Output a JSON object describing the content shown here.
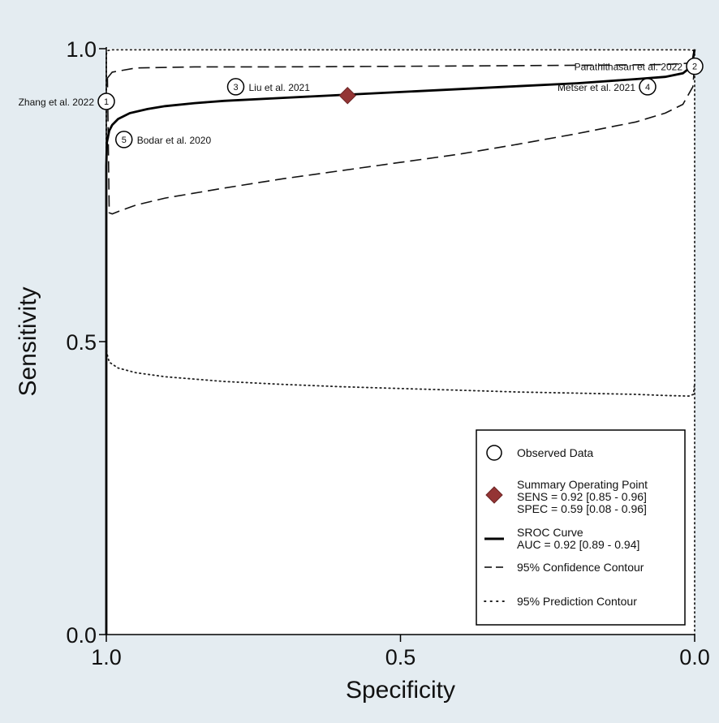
{
  "chart_data": {
    "type": "scatter",
    "xlabel": "Specificity",
    "ylabel": "Sensitivity",
    "x_axis_reversed": true,
    "xlim": [
      1.0,
      0.0
    ],
    "ylim": [
      0.0,
      1.0
    ],
    "x_ticks": [
      {
        "value": 1.0,
        "label": "1.0"
      },
      {
        "value": 0.5,
        "label": "0.5"
      },
      {
        "value": 0.0,
        "label": "0.0"
      }
    ],
    "y_ticks": [
      {
        "value": 0.0,
        "label": "0.0"
      },
      {
        "value": 0.5,
        "label": "0.5"
      },
      {
        "value": 1.0,
        "label": "1.0"
      }
    ],
    "grid": false,
    "background_color": "#e4ecf1",
    "plot_background_color": "#ffffff",
    "studies": [
      {
        "id": "1",
        "label": "Zhang et al. 2022",
        "specificity": 1.0,
        "sensitivity": 0.91,
        "label_side": "left"
      },
      {
        "id": "2",
        "label": "Parathithasan et al. 2022",
        "specificity": 0.0,
        "sensitivity": 0.97,
        "label_side": "left"
      },
      {
        "id": "3",
        "label": "Liu et al. 2021",
        "specificity": 0.78,
        "sensitivity": 0.935,
        "label_side": "right"
      },
      {
        "id": "4",
        "label": "Metser et al. 2021",
        "specificity": 0.08,
        "sensitivity": 0.935,
        "label_side": "left"
      },
      {
        "id": "5",
        "label": "Bodar et al. 2020",
        "specificity": 0.97,
        "sensitivity": 0.845,
        "label_side": "right"
      }
    ],
    "summary_point": {
      "specificity": 0.59,
      "sensitivity": 0.92,
      "color": "#943535"
    },
    "sroc_curve": {
      "x": [
        1.0,
        1.0,
        0.999,
        0.995,
        0.99,
        0.98,
        0.96,
        0.93,
        0.9,
        0.85,
        0.8,
        0.7,
        0.6,
        0.5,
        0.4,
        0.3,
        0.2,
        0.1,
        0.05,
        0.02,
        0.005,
        0.0
      ],
      "y": [
        0.0,
        0.8,
        0.84,
        0.86,
        0.87,
        0.88,
        0.89,
        0.897,
        0.902,
        0.907,
        0.911,
        0.916,
        0.921,
        0.926,
        0.931,
        0.936,
        0.941,
        0.948,
        0.952,
        0.958,
        0.97,
        0.999
      ]
    },
    "confidence_contour": {
      "x": [
        0.998,
        0.99,
        0.95,
        0.85,
        0.7,
        0.5,
        0.3,
        0.15,
        0.05,
        0.015,
        0.003,
        0.0,
        0.003,
        0.02,
        0.05,
        0.1,
        0.2,
        0.3,
        0.4,
        0.5,
        0.6,
        0.7,
        0.8,
        0.9,
        0.95,
        0.98,
        0.99,
        0.995,
        0.998
      ],
      "y": [
        0.95,
        0.96,
        0.967,
        0.969,
        0.969,
        0.97,
        0.971,
        0.972,
        0.973,
        0.975,
        0.978,
        0.975,
        0.935,
        0.905,
        0.89,
        0.875,
        0.855,
        0.837,
        0.82,
        0.806,
        0.792,
        0.778,
        0.762,
        0.745,
        0.733,
        0.722,
        0.718,
        0.72,
        0.95
      ]
    },
    "prediction_contour": {
      "x": [
        1.0,
        1.0,
        0.999,
        0.997,
        0.99,
        0.95,
        0.85,
        0.7,
        0.5,
        0.3,
        0.15,
        0.05,
        0.01,
        0.002,
        0.0,
        0.0
      ],
      "y": [
        0.0,
        0.99,
        0.995,
        0.997,
        0.998,
        0.998,
        0.998,
        0.998,
        0.998,
        0.998,
        0.998,
        0.998,
        0.998,
        0.997,
        0.99,
        0.0
      ]
    },
    "prediction_contour_lower": {
      "x": [
        1.0,
        0.999,
        0.995,
        0.98,
        0.95,
        0.9,
        0.8,
        0.7,
        0.6,
        0.5,
        0.4,
        0.3,
        0.2,
        0.1,
        0.05,
        0.01,
        0.002,
        0.0
      ],
      "y": [
        0.5,
        0.48,
        0.465,
        0.455,
        0.447,
        0.44,
        0.432,
        0.427,
        0.423,
        0.42,
        0.417,
        0.414,
        0.412,
        0.41,
        0.408,
        0.407,
        0.41,
        0.43
      ]
    },
    "legend": {
      "placement": "bottom-right",
      "entries": [
        {
          "symbol": "circle",
          "lines": [
            "Observed Data"
          ]
        },
        {
          "symbol": "diamond",
          "lines": [
            "Summary Operating Point",
            "SENS = 0.92 [0.85 - 0.96]",
            "SPEC = 0.59 [0.08 - 0.96]"
          ]
        },
        {
          "symbol": "solid-line",
          "lines": [
            "SROC Curve",
            "AUC = 0.92 [0.89 - 0.94]"
          ]
        },
        {
          "symbol": "dashed-line",
          "lines": [
            "95% Confidence Contour"
          ]
        },
        {
          "symbol": "dotted-line",
          "lines": [
            "95% Prediction Contour"
          ]
        }
      ]
    }
  }
}
